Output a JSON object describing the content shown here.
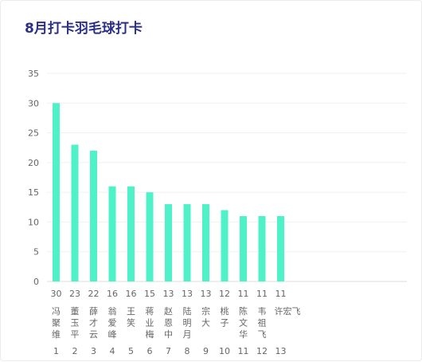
{
  "header": {
    "title": "8月打卡羽毛球打卡"
  },
  "chart_data": {
    "type": "bar",
    "title": "8月打卡羽毛球打卡",
    "xlabel": "",
    "ylabel": "",
    "ylim": [
      0,
      35
    ],
    "yticks": [
      0,
      5,
      10,
      15,
      20,
      25,
      30,
      35
    ],
    "grid": true,
    "bar_color": "#4ff2c8",
    "categories": [
      "冯聚维",
      "董玉平",
      "薛才云",
      "翁爱峰",
      "王笑",
      "蒋业梅",
      "赵恩中",
      "陆明月",
      "宗大",
      "桃子",
      "陈文华",
      "韦祖飞",
      "许宏飞"
    ],
    "values": [
      30,
      23,
      22,
      16,
      16,
      15,
      13,
      13,
      13,
      12,
      11,
      11,
      11
    ],
    "value_labels": [
      "30",
      "23",
      "22",
      "16",
      "16",
      "15",
      "13",
      "13",
      "13",
      "12",
      "11",
      "11",
      "11"
    ],
    "rank_labels": [
      "1",
      "2",
      "3",
      "4",
      "5",
      "6",
      "7",
      "8",
      "9",
      "10",
      "11",
      "12",
      "13"
    ]
  }
}
